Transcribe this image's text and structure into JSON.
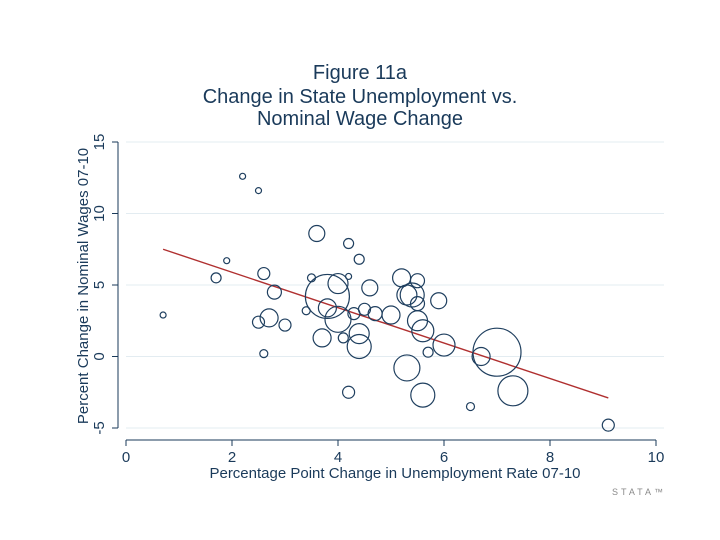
{
  "chart_data": {
    "type": "scatter",
    "title_lines": [
      "Figure 11a",
      "Change in State Unemployment vs.",
      "Nominal Wage Change"
    ],
    "xlabel": "Percentage Point Change in Unemployment Rate 07-10",
    "ylabel": "Percent Change in Nominal Wages 07-10",
    "xlim": [
      0,
      10
    ],
    "ylim": [
      -5,
      15
    ],
    "xticks": [
      0,
      2,
      4,
      6,
      8,
      10
    ],
    "yticks": [
      -5,
      0,
      5,
      10,
      15
    ],
    "grid": true,
    "fit_line": {
      "x": [
        0.7,
        9.1
      ],
      "y": [
        7.5,
        -2.9
      ],
      "color": "#b03030"
    },
    "marker_color": "#1f3f5f",
    "points": [
      {
        "x": 0.7,
        "y": 2.9,
        "s": 3
      },
      {
        "x": 1.7,
        "y": 5.5,
        "s": 5
      },
      {
        "x": 1.9,
        "y": 6.7,
        "s": 3
      },
      {
        "x": 2.2,
        "y": 12.6,
        "s": 3
      },
      {
        "x": 2.5,
        "y": 11.6,
        "s": 3
      },
      {
        "x": 2.5,
        "y": 2.4,
        "s": 6
      },
      {
        "x": 2.6,
        "y": 5.8,
        "s": 6
      },
      {
        "x": 2.6,
        "y": 0.2,
        "s": 4
      },
      {
        "x": 2.7,
        "y": 2.7,
        "s": 9
      },
      {
        "x": 2.8,
        "y": 4.5,
        "s": 7
      },
      {
        "x": 3.0,
        "y": 2.2,
        "s": 6
      },
      {
        "x": 3.4,
        "y": 3.2,
        "s": 4
      },
      {
        "x": 3.5,
        "y": 5.5,
        "s": 4
      },
      {
        "x": 3.6,
        "y": 8.6,
        "s": 8
      },
      {
        "x": 3.7,
        "y": 1.3,
        "s": 9
      },
      {
        "x": 3.8,
        "y": 4.2,
        "s": 22
      },
      {
        "x": 3.8,
        "y": 3.4,
        "s": 9
      },
      {
        "x": 4.0,
        "y": 5.1,
        "s": 10
      },
      {
        "x": 4.0,
        "y": 2.6,
        "s": 13
      },
      {
        "x": 4.1,
        "y": 1.3,
        "s": 5
      },
      {
        "x": 4.2,
        "y": 7.9,
        "s": 5
      },
      {
        "x": 4.2,
        "y": 5.6,
        "s": 3
      },
      {
        "x": 4.2,
        "y": -2.5,
        "s": 6
      },
      {
        "x": 4.3,
        "y": 3.0,
        "s": 6
      },
      {
        "x": 4.4,
        "y": 6.8,
        "s": 5
      },
      {
        "x": 4.4,
        "y": 1.6,
        "s": 10
      },
      {
        "x": 4.4,
        "y": 0.7,
        "s": 12
      },
      {
        "x": 4.5,
        "y": 3.3,
        "s": 6
      },
      {
        "x": 4.6,
        "y": 4.8,
        "s": 8
      },
      {
        "x": 4.7,
        "y": 3.0,
        "s": 7
      },
      {
        "x": 5.0,
        "y": 2.9,
        "s": 9
      },
      {
        "x": 5.2,
        "y": 5.5,
        "s": 9
      },
      {
        "x": 5.3,
        "y": 4.3,
        "s": 10
      },
      {
        "x": 5.3,
        "y": -0.8,
        "s": 13
      },
      {
        "x": 5.4,
        "y": 4.3,
        "s": 12
      },
      {
        "x": 5.5,
        "y": 5.3,
        "s": 7
      },
      {
        "x": 5.5,
        "y": 3.7,
        "s": 7
      },
      {
        "x": 5.5,
        "y": 2.5,
        "s": 10
      },
      {
        "x": 5.6,
        "y": 1.8,
        "s": 11
      },
      {
        "x": 5.6,
        "y": -2.7,
        "s": 12
      },
      {
        "x": 5.7,
        "y": 0.3,
        "s": 5
      },
      {
        "x": 5.9,
        "y": 3.9,
        "s": 8
      },
      {
        "x": 6.0,
        "y": 0.8,
        "s": 11
      },
      {
        "x": 6.5,
        "y": -3.5,
        "s": 4
      },
      {
        "x": 6.7,
        "y": 0.0,
        "s": 9
      },
      {
        "x": 7.0,
        "y": 0.3,
        "s": 24
      },
      {
        "x": 7.3,
        "y": -2.4,
        "s": 15
      },
      {
        "x": 9.1,
        "y": -4.8,
        "s": 6
      }
    ]
  },
  "watermark": "STATA™"
}
